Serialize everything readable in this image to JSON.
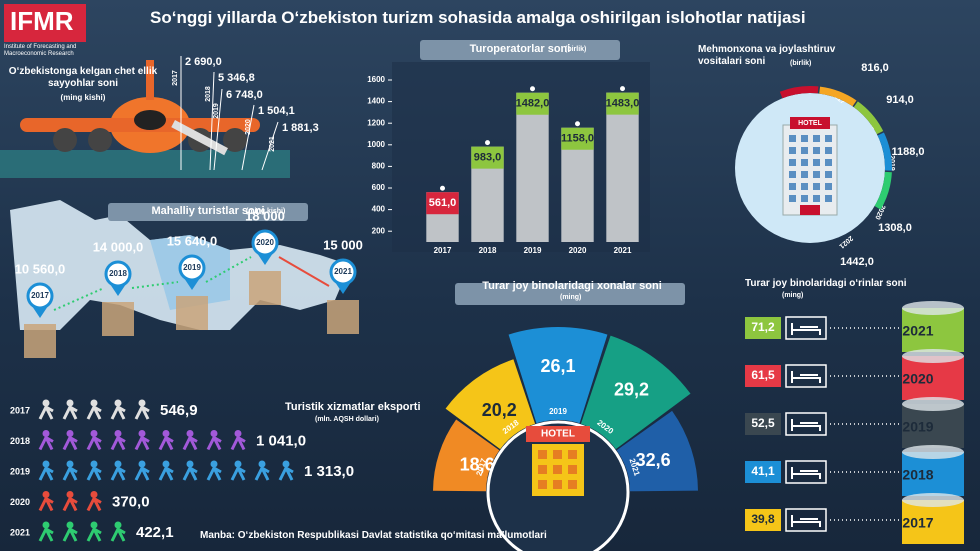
{
  "header": {
    "logo": "IFMR",
    "logo_sub": "Institute of Forecasting and Macroeconomic Research",
    "title": "So‘nggi yillarda O‘zbekiston turizm sohasida amalga oshirilgan islohotlar natijasi"
  },
  "foreign_visitors": {
    "title": "O‘zbekistonga kelgan chet ellik sayyohlar soni",
    "unit": "(ming kishi)",
    "items": [
      {
        "year": "2017",
        "value": "2 690,0"
      },
      {
        "year": "2018",
        "value": "5 346,8"
      },
      {
        "year": "2019",
        "value": "6 748,0"
      },
      {
        "year": "2020",
        "value": "1 504,1"
      },
      {
        "year": "2021",
        "value": "1 881,3"
      }
    ]
  },
  "domestic_tourists": {
    "title": "Mahalliy turistlar soni",
    "unit": "(ming kishi)",
    "items": [
      {
        "year": "2017",
        "value": "10 560,0"
      },
      {
        "year": "2018",
        "value": "14 000,0"
      },
      {
        "year": "2019",
        "value": "15 640,0"
      },
      {
        "year": "2020",
        "value": "18 000"
      },
      {
        "year": "2021",
        "value": "15 000"
      }
    ]
  },
  "chart_data": {
    "type": "bar",
    "title": "Turoperatorlar soni",
    "unit": "(birlik)",
    "categories": [
      "2017",
      "2018",
      "2019",
      "2020",
      "2021"
    ],
    "values": [
      561,
      983,
      1482,
      1158,
      1483
    ],
    "value_labels": [
      "561,0",
      "983,0",
      "1482,0",
      "1158,0",
      "1483,0"
    ],
    "color": "#bfc3c7",
    "label_colors": [
      "#d7263d",
      "#8dc63f",
      "#8dc63f",
      "#8dc63f",
      "#8dc63f"
    ],
    "ylim": [
      100,
      1600
    ],
    "yticks": [
      200,
      400,
      600,
      800,
      1000,
      1200,
      1400,
      1600
    ]
  },
  "hotels": {
    "title": "Mehmonxona va joylashtiruv vositalari soni",
    "unit": "(birlik)",
    "sign": "HOTEL",
    "items": [
      {
        "year": "2017",
        "value": "816,0"
      },
      {
        "year": "2018",
        "value": "914,0"
      },
      {
        "year": "2019",
        "value": "1188,0"
      },
      {
        "year": "2020",
        "value": "1308,0"
      },
      {
        "year": "2021",
        "value": "1442,0"
      }
    ]
  },
  "rooms": {
    "title": "Turar joy binolaridagi xonalar soni",
    "unit": "(ming)",
    "sign": "HOTEL",
    "items": [
      {
        "year": "2017",
        "value": "18,6"
      },
      {
        "year": "2018",
        "value": "20,2"
      },
      {
        "year": "2019",
        "value": "26,1"
      },
      {
        "year": "2020",
        "value": "29,2"
      },
      {
        "year": "2021",
        "value": "32,6"
      }
    ]
  },
  "beds": {
    "title": "Turar joy binolaridagi o‘rinlar soni",
    "unit": "(ming)",
    "items": [
      {
        "year": "2021",
        "value": "71,2"
      },
      {
        "year": "2020",
        "value": "61,5"
      },
      {
        "year": "2019",
        "value": "52,5"
      },
      {
        "year": "2018",
        "value": "41,1"
      },
      {
        "year": "2017",
        "value": "39,8"
      }
    ]
  },
  "exports": {
    "title": "Turistik xizmatlar eksporti",
    "unit": "(mln. AQSH dollari)",
    "items": [
      {
        "year": "2017",
        "value": "546,9"
      },
      {
        "year": "2018",
        "value": "1 041,0"
      },
      {
        "year": "2019",
        "value": "1 313,0"
      },
      {
        "year": "2020",
        "value": "370,0"
      },
      {
        "year": "2021",
        "value": "422,1"
      }
    ]
  },
  "source": "Manba: O‘zbekiston Respublikasi Davlat statistika qo‘mitasi ma’lumotlari"
}
